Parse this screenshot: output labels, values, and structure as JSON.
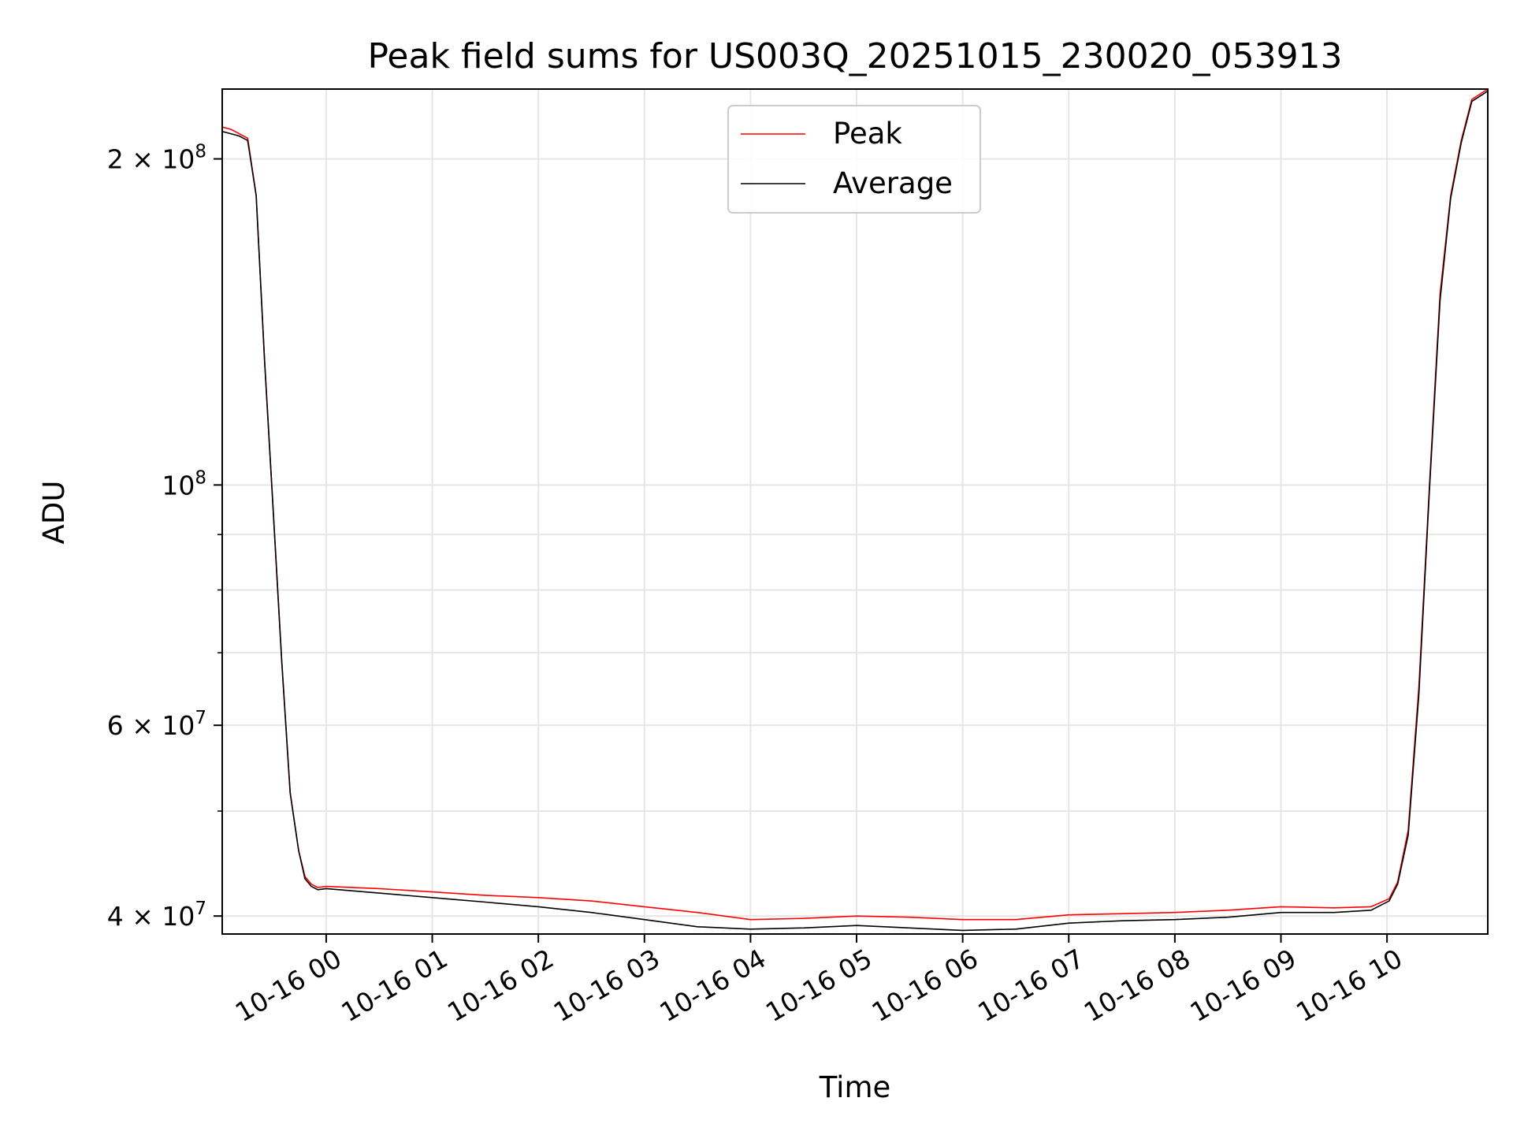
{
  "chart_data": {
    "type": "line",
    "title": "Peak field sums for US003Q_20251015_230020_053913",
    "xlabel": "Time",
    "ylabel": "ADU",
    "yscale": "log",
    "ylim": [
      38500000,
      232000000
    ],
    "x_unit": "hours since 10-16 00:00",
    "xlim": [
      -0.98,
      10.95
    ],
    "grid": true,
    "legend_position": "upper center",
    "x_ticks": [
      {
        "value": 0,
        "label": "10-16 00"
      },
      {
        "value": 1,
        "label": "10-16 01"
      },
      {
        "value": 2,
        "label": "10-16 02"
      },
      {
        "value": 3,
        "label": "10-16 03"
      },
      {
        "value": 4,
        "label": "10-16 04"
      },
      {
        "value": 5,
        "label": "10-16 05"
      },
      {
        "value": 6,
        "label": "10-16 06"
      },
      {
        "value": 7,
        "label": "10-16 07"
      },
      {
        "value": 8,
        "label": "10-16 08"
      },
      {
        "value": 9,
        "label": "10-16 09"
      },
      {
        "value": 10,
        "label": "10-16 10"
      }
    ],
    "y_major_ticks": [
      {
        "value": 40000000,
        "mantissa": "4",
        "exp": "7"
      },
      {
        "value": 60000000,
        "mantissa": "6",
        "exp": "7"
      },
      {
        "value": 100000000,
        "mantissa": "",
        "exp": "8"
      },
      {
        "value": 200000000,
        "mantissa": "2",
        "exp": "8"
      }
    ],
    "y_minor_ticks": [
      50000000,
      70000000,
      80000000,
      90000000
    ],
    "series": [
      {
        "name": "Peak",
        "color": "#ff0000",
        "x": [
          -0.98,
          -0.9,
          -0.82,
          -0.74,
          -0.66,
          -0.58,
          -0.5,
          -0.42,
          -0.34,
          -0.26,
          -0.2,
          -0.14,
          -0.08,
          0,
          0.5,
          1,
          1.5,
          2,
          2.5,
          3,
          3.5,
          4,
          4.5,
          5,
          5.5,
          6,
          6.5,
          7,
          7.5,
          8,
          8.5,
          9,
          9.5,
          9.85,
          10.02,
          10.1,
          10.2,
          10.3,
          10.4,
          10.5,
          10.6,
          10.7,
          10.8,
          10.95
        ],
        "values": [
          214000000,
          213000000,
          211000000,
          209000000,
          185000000,
          130000000,
          95000000,
          69000000,
          52000000,
          46000000,
          43500000,
          42800000,
          42500000,
          42600000,
          42400000,
          42100000,
          41800000,
          41600000,
          41300000,
          40800000,
          40300000,
          39700000,
          39800000,
          40000000,
          39900000,
          39700000,
          39700000,
          40100000,
          40200000,
          40300000,
          40500000,
          40800000,
          40700000,
          40800000,
          41500000,
          43000000,
          48000000,
          65000000,
          100000000,
          150000000,
          185000000,
          208000000,
          227000000,
          232000000
        ]
      },
      {
        "name": "Average",
        "color": "#000000",
        "x": [
          -0.98,
          -0.9,
          -0.82,
          -0.74,
          -0.66,
          -0.58,
          -0.5,
          -0.42,
          -0.34,
          -0.26,
          -0.2,
          -0.14,
          -0.08,
          0,
          0.5,
          1,
          1.5,
          2,
          2.5,
          3,
          3.5,
          4,
          4.5,
          5,
          5.5,
          6,
          6.5,
          7,
          7.5,
          8,
          8.5,
          9,
          9.5,
          9.85,
          10.02,
          10.1,
          10.2,
          10.3,
          10.4,
          10.5,
          10.6,
          10.7,
          10.8,
          10.95
        ],
        "values": [
          212000000,
          211000000,
          210000000,
          208000000,
          185000000,
          130000000,
          95000000,
          69000000,
          52000000,
          46000000,
          43300000,
          42600000,
          42300000,
          42400000,
          42000000,
          41600000,
          41200000,
          40800000,
          40300000,
          39700000,
          39100000,
          38900000,
          39000000,
          39200000,
          39000000,
          38800000,
          38900000,
          39400000,
          39600000,
          39700000,
          39900000,
          40300000,
          40300000,
          40500000,
          41300000,
          42800000,
          47500000,
          64000000,
          99000000,
          148000000,
          184000000,
          207000000,
          226000000,
          231000000
        ]
      }
    ]
  }
}
